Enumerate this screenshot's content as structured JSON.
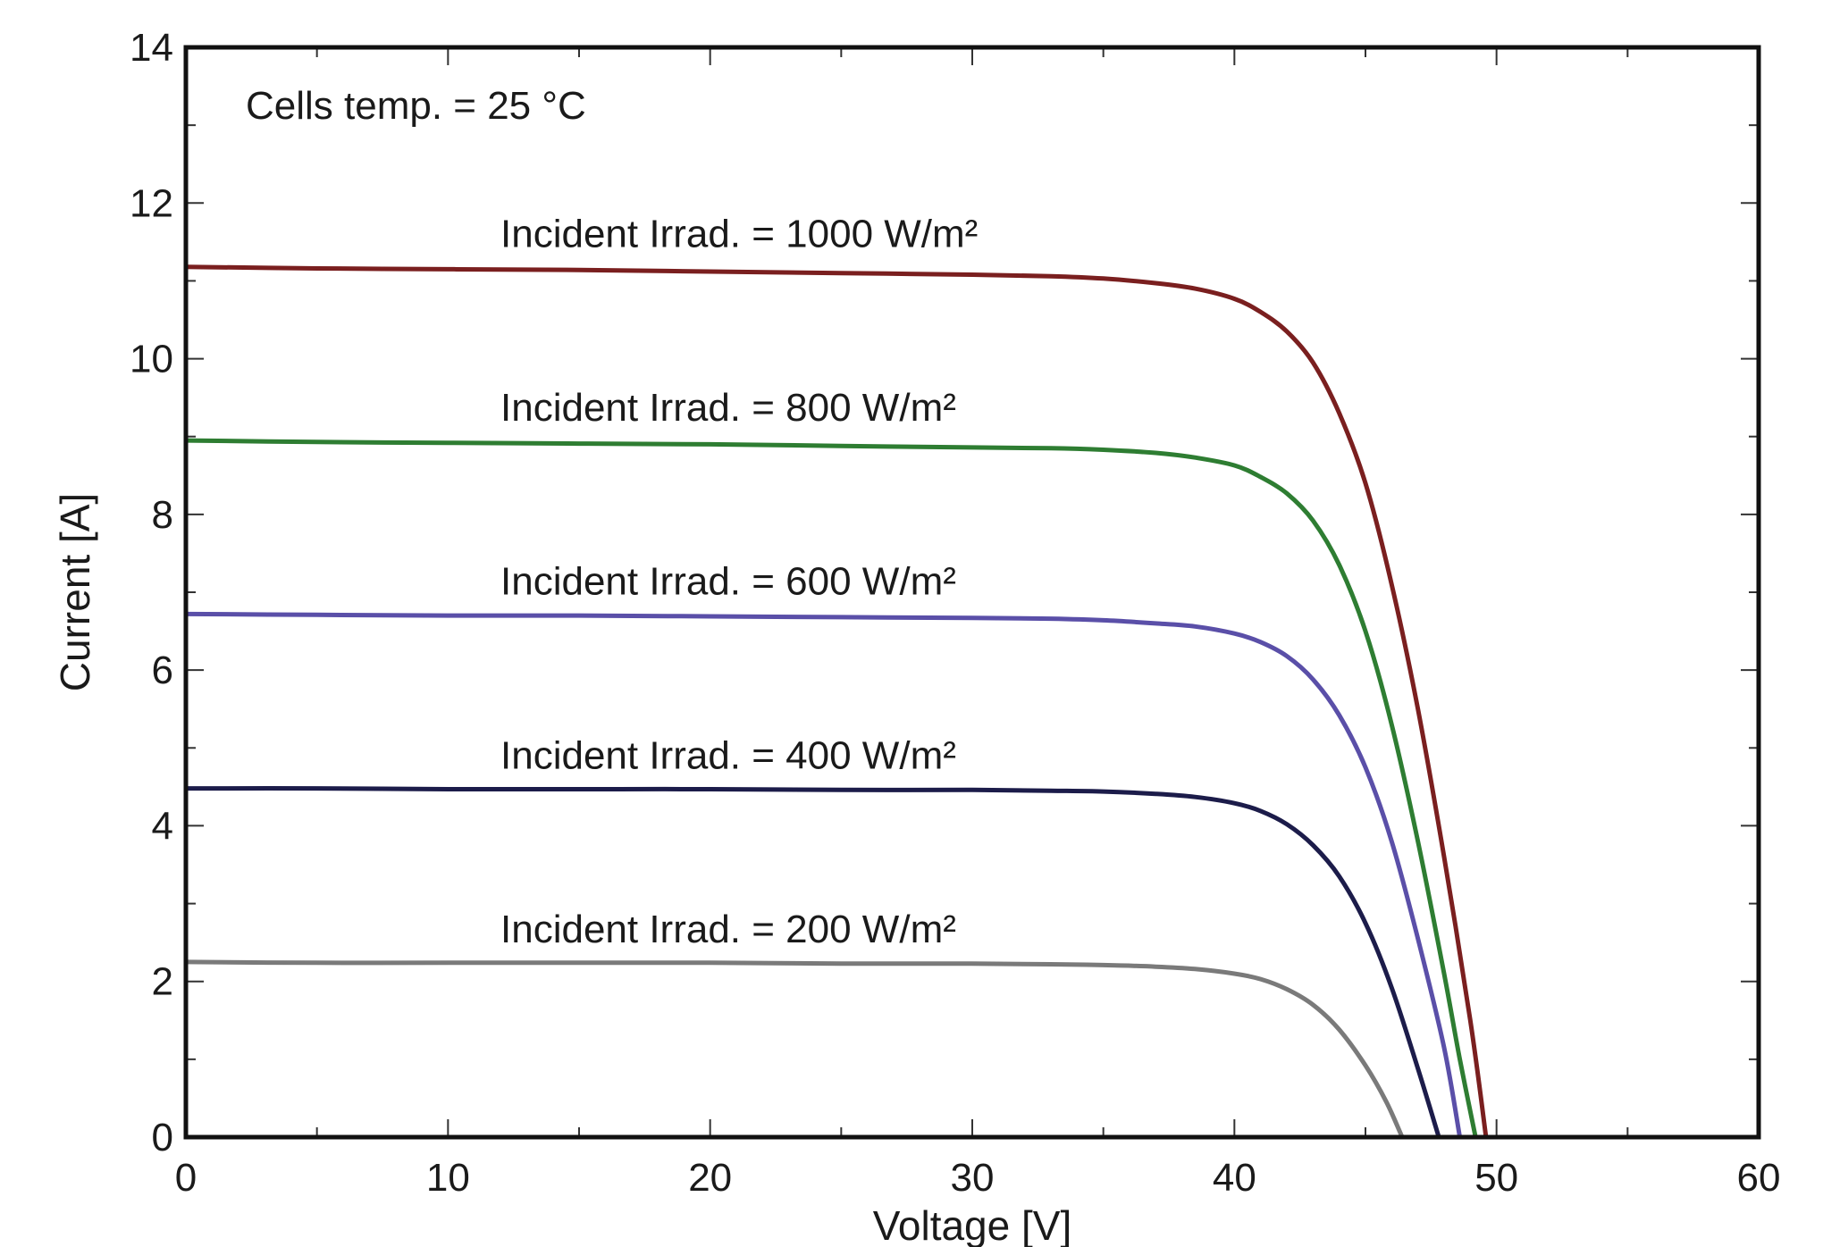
{
  "chart_data": {
    "type": "line",
    "title": "",
    "xlabel": "Voltage [V]",
    "ylabel": "Current [A]",
    "xlim": [
      0,
      60
    ],
    "ylim": [
      0,
      14
    ],
    "x_ticks": [
      0,
      10,
      20,
      30,
      40,
      50,
      60
    ],
    "y_ticks": [
      0,
      2,
      4,
      6,
      8,
      10,
      12,
      14
    ],
    "grid": false,
    "annotation": "Cells temp. = 25 °C",
    "series": [
      {
        "name": "Incident Irrad. = 1000 W/m²",
        "color": "#7a1f1f",
        "x": [
          0,
          5,
          10,
          15,
          20,
          25,
          30,
          33,
          35,
          37,
          38.5,
          40,
          41,
          42,
          43,
          44,
          45,
          46,
          47,
          48,
          49,
          49.6
        ],
        "y": [
          11.18,
          11.16,
          11.15,
          11.14,
          11.12,
          11.1,
          11.08,
          11.06,
          11.03,
          10.97,
          10.9,
          10.77,
          10.6,
          10.35,
          9.95,
          9.3,
          8.4,
          7.1,
          5.5,
          3.6,
          1.5,
          0
        ]
      },
      {
        "name": "Incident Irrad. = 800 W/m²",
        "color": "#2e7d32",
        "x": [
          0,
          5,
          10,
          15,
          20,
          25,
          30,
          33,
          35,
          37,
          38.5,
          40,
          41,
          42,
          43,
          44,
          45,
          46,
          47,
          48,
          48.6,
          49.2
        ],
        "y": [
          8.95,
          8.93,
          8.92,
          8.91,
          8.9,
          8.88,
          8.86,
          8.85,
          8.83,
          8.79,
          8.73,
          8.63,
          8.48,
          8.27,
          7.92,
          7.35,
          6.5,
          5.3,
          3.8,
          2.1,
          1.0,
          0
        ]
      },
      {
        "name": "Incident Irrad. = 600 W/m²",
        "color": "#5a4fa8",
        "x": [
          0,
          5,
          10,
          15,
          20,
          25,
          30,
          33,
          35,
          37,
          38.5,
          40,
          41,
          42,
          43,
          44,
          45,
          46,
          47,
          48,
          48.6
        ],
        "y": [
          6.72,
          6.71,
          6.7,
          6.7,
          6.69,
          6.68,
          6.67,
          6.66,
          6.64,
          6.6,
          6.56,
          6.47,
          6.36,
          6.18,
          5.88,
          5.42,
          4.75,
          3.8,
          2.55,
          1.15,
          0
        ]
      },
      {
        "name": "Incident Irrad. = 400 W/m²",
        "color": "#1c1c4a",
        "x": [
          0,
          5,
          10,
          15,
          20,
          25,
          30,
          33,
          35,
          37,
          38.5,
          40,
          41,
          42,
          43,
          44,
          45,
          46,
          47,
          47.8
        ],
        "y": [
          4.48,
          4.48,
          4.47,
          4.47,
          4.47,
          4.46,
          4.46,
          4.45,
          4.44,
          4.41,
          4.37,
          4.29,
          4.19,
          4.02,
          3.75,
          3.35,
          2.75,
          1.92,
          0.88,
          0
        ]
      },
      {
        "name": "Incident Irrad. = 200 W/m²",
        "color": "#7a7a7a",
        "x": [
          0,
          5,
          10,
          15,
          20,
          25,
          30,
          33,
          35,
          37,
          38.5,
          40,
          41,
          42,
          43,
          44,
          45,
          45.8,
          46.4
        ],
        "y": [
          2.25,
          2.24,
          2.24,
          2.24,
          2.24,
          2.23,
          2.23,
          2.22,
          2.21,
          2.19,
          2.16,
          2.1,
          2.03,
          1.9,
          1.7,
          1.38,
          0.92,
          0.45,
          0
        ]
      }
    ]
  }
}
